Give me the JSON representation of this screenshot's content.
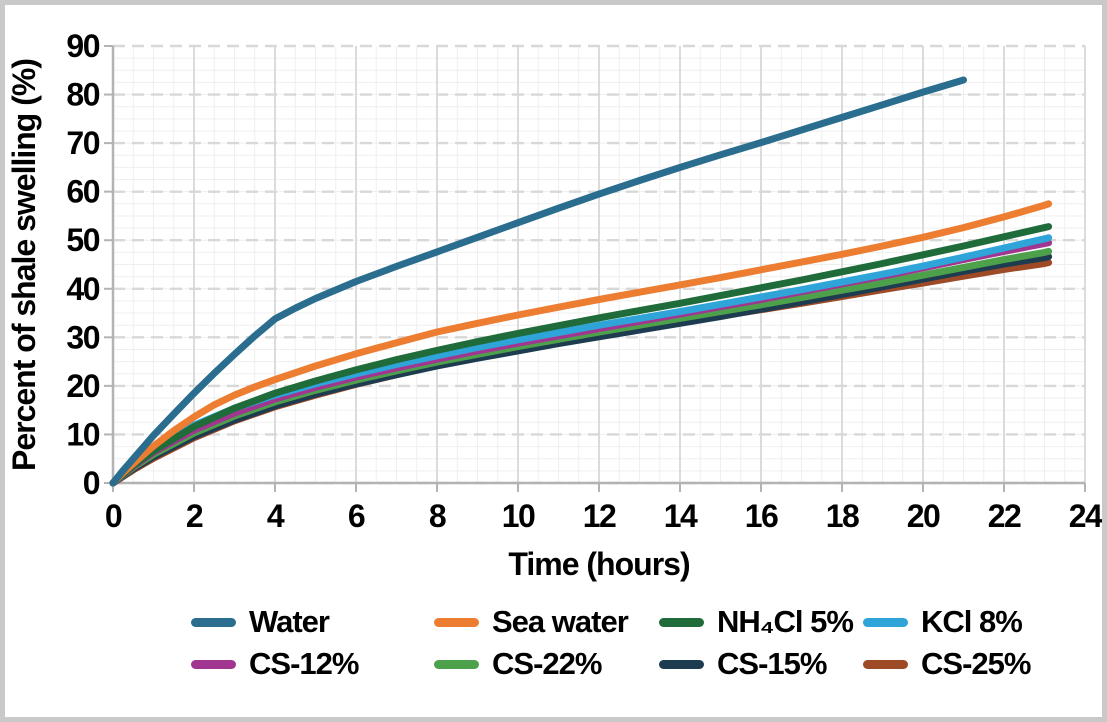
{
  "chart_data": {
    "type": "line",
    "title": "",
    "xlabel": "Time (hours)",
    "ylabel": "Percent of shale swelling (%)",
    "xlim": [
      0,
      24
    ],
    "ylim": [
      0,
      90
    ],
    "x_ticks": [
      0,
      2,
      4,
      6,
      8,
      10,
      12,
      14,
      16,
      18,
      20,
      22,
      24
    ],
    "y_ticks": [
      0,
      10,
      20,
      30,
      40,
      50,
      60,
      70,
      80,
      90
    ],
    "x_minor_step": 0.5,
    "y_minor_step": 2.5,
    "grid": "minor mesh + solid major verticals + dashed major horizontals",
    "legend_position": "bottom, 2 rows x 4 columns",
    "series": [
      {
        "name": "Water",
        "color": "#2A6D8E",
        "points": [
          [
            0,
            0
          ],
          [
            0.25,
            2.6
          ],
          [
            0.5,
            5
          ],
          [
            1,
            9.8
          ],
          [
            1.5,
            14.2
          ],
          [
            2,
            18.5
          ],
          [
            2.5,
            22.6
          ],
          [
            3,
            26.5
          ],
          [
            3.5,
            30.3
          ],
          [
            4,
            33.8
          ],
          [
            4.5,
            36
          ],
          [
            5,
            38
          ],
          [
            6,
            41.5
          ],
          [
            7,
            44.6
          ],
          [
            8,
            47.6
          ],
          [
            9,
            50.6
          ],
          [
            10,
            53.6
          ],
          [
            11,
            56.6
          ],
          [
            12,
            59.5
          ],
          [
            13,
            62.3
          ],
          [
            14,
            65
          ],
          [
            15,
            67.6
          ],
          [
            16,
            70.1
          ],
          [
            17,
            72.7
          ],
          [
            18,
            75.3
          ],
          [
            19,
            77.9
          ],
          [
            20,
            80.5
          ],
          [
            21,
            83
          ]
        ]
      },
      {
        "name": "Sea water",
        "color": "#EC7D31",
        "points": [
          [
            0,
            0
          ],
          [
            0.25,
            2.1
          ],
          [
            0.5,
            4
          ],
          [
            1,
            7.6
          ],
          [
            1.5,
            10.8
          ],
          [
            2,
            13.6
          ],
          [
            2.5,
            16.1
          ],
          [
            3,
            18.1
          ],
          [
            3.5,
            19.8
          ],
          [
            4,
            21.3
          ],
          [
            5,
            24.1
          ],
          [
            6,
            26.6
          ],
          [
            7,
            28.9
          ],
          [
            8,
            31.1
          ],
          [
            9,
            32.9
          ],
          [
            10,
            34.6
          ],
          [
            11,
            36.2
          ],
          [
            12,
            37.8
          ],
          [
            13,
            39.3
          ],
          [
            14,
            40.8
          ],
          [
            15,
            42.3
          ],
          [
            16,
            43.9
          ],
          [
            17,
            45.5
          ],
          [
            18,
            47.1
          ],
          [
            19,
            48.8
          ],
          [
            20,
            50.6
          ],
          [
            21,
            52.6
          ],
          [
            22,
            54.8
          ],
          [
            23,
            57.2
          ],
          [
            23.1,
            57.5
          ]
        ]
      },
      {
        "name": "NH₄Cl 5%",
        "color": "#1F6B39",
        "points": [
          [
            0,
            0
          ],
          [
            0.5,
            3.6
          ],
          [
            1,
            6.6
          ],
          [
            2,
            11.6
          ],
          [
            3,
            15.4
          ],
          [
            4,
            18.5
          ],
          [
            5,
            21
          ],
          [
            6,
            23.3
          ],
          [
            7,
            25.4
          ],
          [
            8,
            27.3
          ],
          [
            9,
            29.1
          ],
          [
            10,
            30.8
          ],
          [
            11,
            32.4
          ],
          [
            12,
            34
          ],
          [
            13,
            35.5
          ],
          [
            14,
            37
          ],
          [
            15,
            38.6
          ],
          [
            16,
            40.2
          ],
          [
            17,
            41.8
          ],
          [
            18,
            43.5
          ],
          [
            19,
            45.2
          ],
          [
            20,
            47
          ],
          [
            21,
            48.8
          ],
          [
            22,
            50.7
          ],
          [
            23,
            52.6
          ],
          [
            23.1,
            52.8
          ]
        ]
      },
      {
        "name": "KCl 8%",
        "color": "#2FA4D9",
        "points": [
          [
            0,
            0
          ],
          [
            0.5,
            3.9
          ],
          [
            1,
            7
          ],
          [
            2,
            11.9
          ],
          [
            3,
            15.4
          ],
          [
            4,
            18.1
          ],
          [
            5,
            20.4
          ],
          [
            6,
            22.5
          ],
          [
            7,
            24.4
          ],
          [
            8,
            26.2
          ],
          [
            9,
            27.9
          ],
          [
            10,
            29.5
          ],
          [
            11,
            31
          ],
          [
            12,
            32.5
          ],
          [
            13,
            33.9
          ],
          [
            14,
            35.3
          ],
          [
            15,
            36.8
          ],
          [
            16,
            38.3
          ],
          [
            17,
            39.8
          ],
          [
            18,
            41.4
          ],
          [
            19,
            43
          ],
          [
            20,
            44.7
          ],
          [
            21,
            46.5
          ],
          [
            22,
            48.4
          ],
          [
            23,
            50.3
          ],
          [
            23.1,
            50.5
          ]
        ]
      },
      {
        "name": "CS-12%",
        "color": "#A13691",
        "points": [
          [
            0,
            0
          ],
          [
            0.5,
            3.4
          ],
          [
            1,
            6.3
          ],
          [
            2,
            10.9
          ],
          [
            3,
            14.4
          ],
          [
            4,
            17.3
          ],
          [
            5,
            19.7
          ],
          [
            6,
            21.8
          ],
          [
            7,
            23.7
          ],
          [
            8,
            25.5
          ],
          [
            9,
            27.2
          ],
          [
            10,
            28.8
          ],
          [
            11,
            30.3
          ],
          [
            12,
            31.8
          ],
          [
            13,
            33.3
          ],
          [
            14,
            34.8
          ],
          [
            15,
            36.3
          ],
          [
            16,
            37.8
          ],
          [
            17,
            39.4
          ],
          [
            18,
            41
          ],
          [
            19,
            42.6
          ],
          [
            20,
            44.3
          ],
          [
            21,
            46
          ],
          [
            22,
            47.7
          ],
          [
            23,
            49.3
          ],
          [
            23.1,
            49.5
          ]
        ]
      },
      {
        "name": "CS-22%",
        "color": "#4EA14B",
        "points": [
          [
            0,
            0
          ],
          [
            0.5,
            3.2
          ],
          [
            1,
            5.9
          ],
          [
            2,
            10.3
          ],
          [
            3,
            13.8
          ],
          [
            4,
            16.7
          ],
          [
            5,
            19.1
          ],
          [
            6,
            21.2
          ],
          [
            7,
            23.1
          ],
          [
            8,
            24.9
          ],
          [
            9,
            26.5
          ],
          [
            10,
            28.1
          ],
          [
            11,
            29.6
          ],
          [
            12,
            31.1
          ],
          [
            13,
            32.5
          ],
          [
            14,
            33.9
          ],
          [
            15,
            35.3
          ],
          [
            16,
            36.7
          ],
          [
            17,
            38.2
          ],
          [
            18,
            39.7
          ],
          [
            19,
            41.2
          ],
          [
            20,
            42.8
          ],
          [
            21,
            44.4
          ],
          [
            22,
            46
          ],
          [
            23,
            47.5
          ],
          [
            23.1,
            47.7
          ]
        ]
      },
      {
        "name": "CS-15%",
        "color": "#1D3C50",
        "points": [
          [
            0,
            0
          ],
          [
            0.5,
            2.9
          ],
          [
            1,
            5.4
          ],
          [
            2,
            9.6
          ],
          [
            3,
            13
          ],
          [
            4,
            15.9
          ],
          [
            5,
            18.3
          ],
          [
            6,
            20.4
          ],
          [
            7,
            22.3
          ],
          [
            8,
            24.1
          ],
          [
            9,
            25.7
          ],
          [
            10,
            27.2
          ],
          [
            11,
            28.7
          ],
          [
            12,
            30.1
          ],
          [
            13,
            31.5
          ],
          [
            14,
            32.9
          ],
          [
            15,
            34.3
          ],
          [
            16,
            35.8
          ],
          [
            17,
            37.3
          ],
          [
            18,
            38.8
          ],
          [
            19,
            40.4
          ],
          [
            20,
            42
          ],
          [
            21,
            43.6
          ],
          [
            22,
            45.1
          ],
          [
            23,
            46.4
          ],
          [
            23.1,
            46.6
          ]
        ]
      },
      {
        "name": "CS-25%",
        "color": "#9E4A26",
        "points": [
          [
            0,
            0
          ],
          [
            0.5,
            2.7
          ],
          [
            1,
            5.1
          ],
          [
            2,
            9.3
          ],
          [
            3,
            12.8
          ],
          [
            4,
            15.7
          ],
          [
            5,
            18.1
          ],
          [
            6,
            20.3
          ],
          [
            7,
            22.3
          ],
          [
            8,
            24.2
          ],
          [
            9,
            25.8
          ],
          [
            10,
            27.4
          ],
          [
            11,
            28.9
          ],
          [
            12,
            30.3
          ],
          [
            13,
            31.7
          ],
          [
            14,
            33.1
          ],
          [
            15,
            34.4
          ],
          [
            16,
            35.7
          ],
          [
            17,
            37
          ],
          [
            18,
            38.4
          ],
          [
            19,
            39.8
          ],
          [
            20,
            41.2
          ],
          [
            21,
            42.6
          ],
          [
            22,
            44
          ],
          [
            23,
            45.2
          ],
          [
            23.1,
            45.4
          ]
        ]
      }
    ]
  }
}
